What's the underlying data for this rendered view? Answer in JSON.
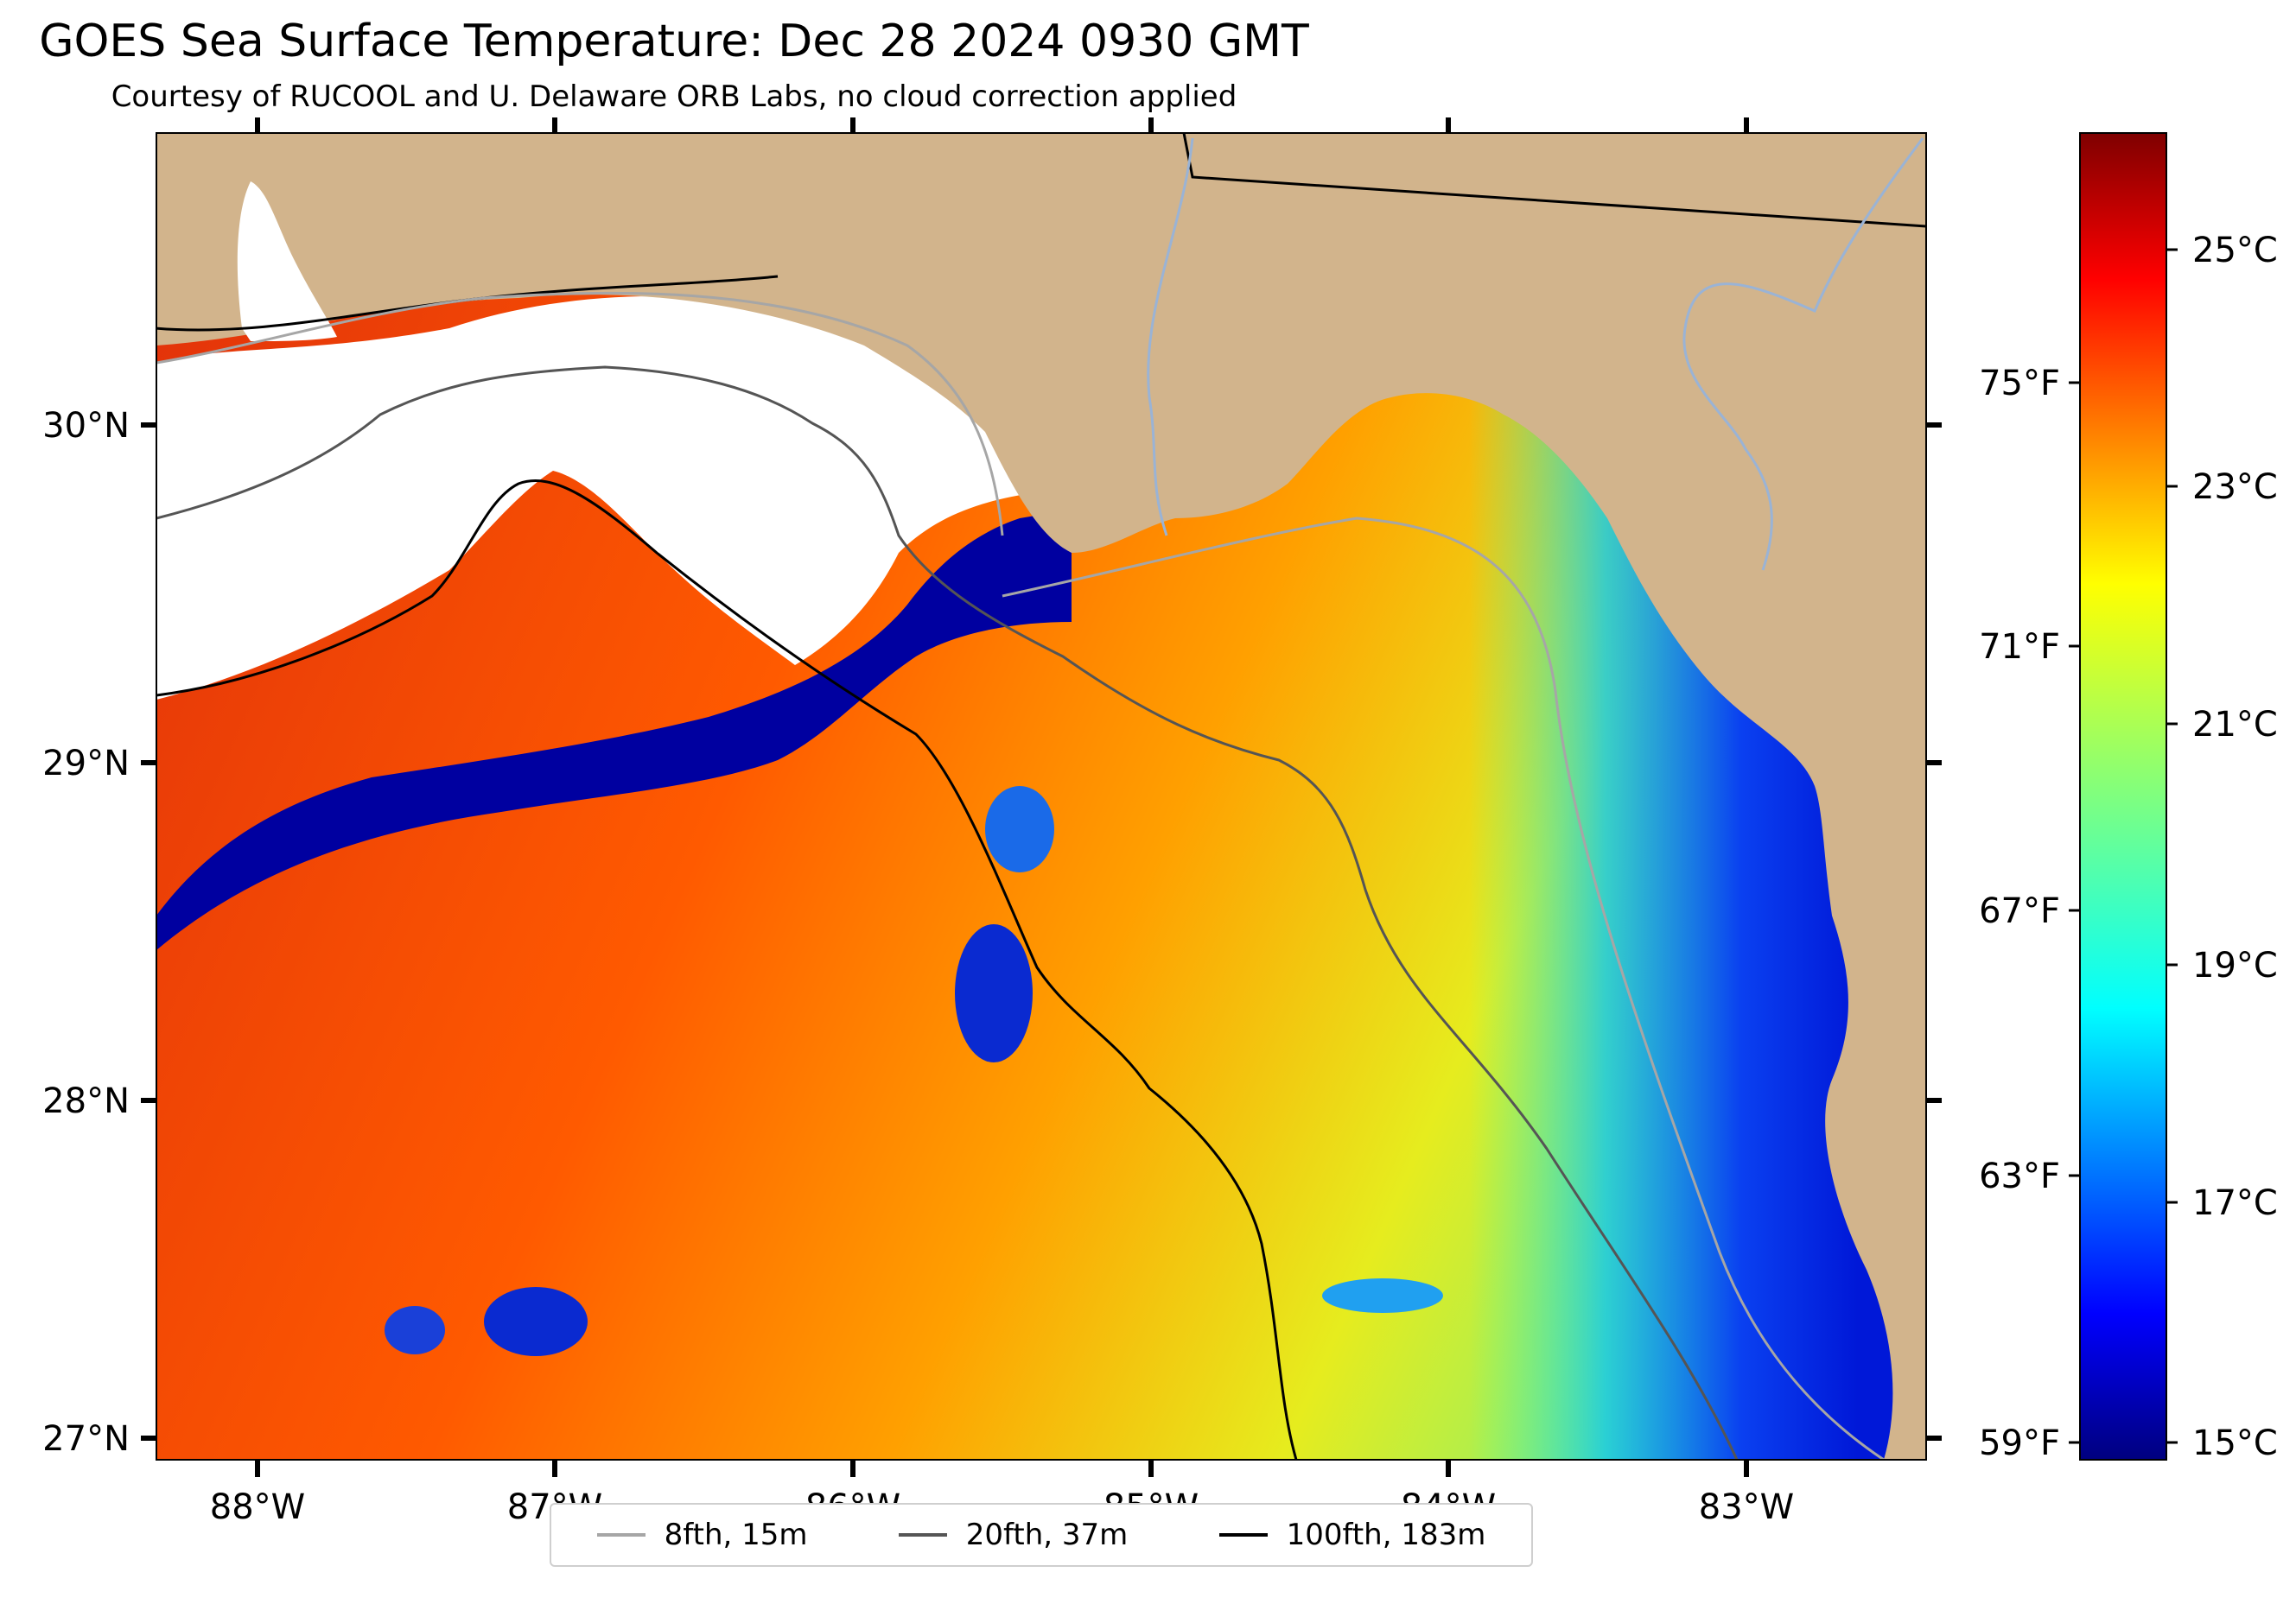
{
  "title": "GOES Sea Surface Temperature: Dec 28 2024 0930 GMT",
  "subtitle": "Courtesy of RUCOOL and U. Delaware ORB Labs, no cloud correction applied",
  "map": {
    "lon_ticks": [
      "88°W",
      "87°W",
      "86°W",
      "85°W",
      "84°W",
      "83°W"
    ],
    "lat_ticks": [
      "30°N",
      "29°N",
      "28°N",
      "27°N"
    ],
    "land_color": "#d2b48c",
    "river_color": "#9ab3d5"
  },
  "colorbar": {
    "colormap": "jet",
    "celsius_range": [
      14.8,
      26.0
    ],
    "celsius_labels": [
      "25°C",
      "23°C",
      "21°C",
      "19°C",
      "17°C",
      "15°C"
    ],
    "fahrenheit_labels": [
      "75°F",
      "71°F",
      "67°F",
      "63°F",
      "59°F"
    ]
  },
  "legend": {
    "items": [
      {
        "label": "8fth, 15m",
        "color": "#a6a6a6"
      },
      {
        "label": "20fth, 37m",
        "color": "#555555"
      },
      {
        "label": "100fth, 183m",
        "color": "#000000"
      }
    ]
  }
}
